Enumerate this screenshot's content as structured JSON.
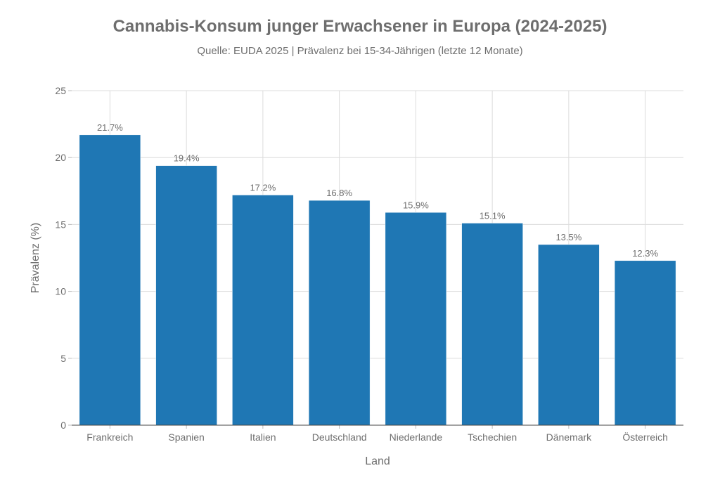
{
  "chart_data": {
    "type": "bar",
    "title": "Cannabis-Konsum junger Erwachsener in Europa (2024-2025)",
    "subtitle": "Quelle: EUDA 2025 | Prävalenz bei 15-34-Jährigen (letzte 12 Monate)",
    "xlabel": "Land",
    "ylabel": "Prävalenz (%)",
    "ylim": [
      0,
      25
    ],
    "yticks": [
      0,
      5,
      10,
      15,
      20,
      25
    ],
    "grid": true,
    "categories": [
      "Frankreich",
      "Spanien",
      "Italien",
      "Deutschland",
      "Niederlande",
      "Tschechien",
      "Dänemark",
      "Österreich"
    ],
    "values": [
      21.7,
      19.4,
      17.2,
      16.8,
      15.9,
      15.1,
      13.5,
      12.3
    ],
    "data_labels": [
      "21.7%",
      "19.4%",
      "17.2%",
      "16.8%",
      "15.9%",
      "15.1%",
      "13.5%",
      "12.3%"
    ],
    "bar_color": "#1f77b4"
  }
}
